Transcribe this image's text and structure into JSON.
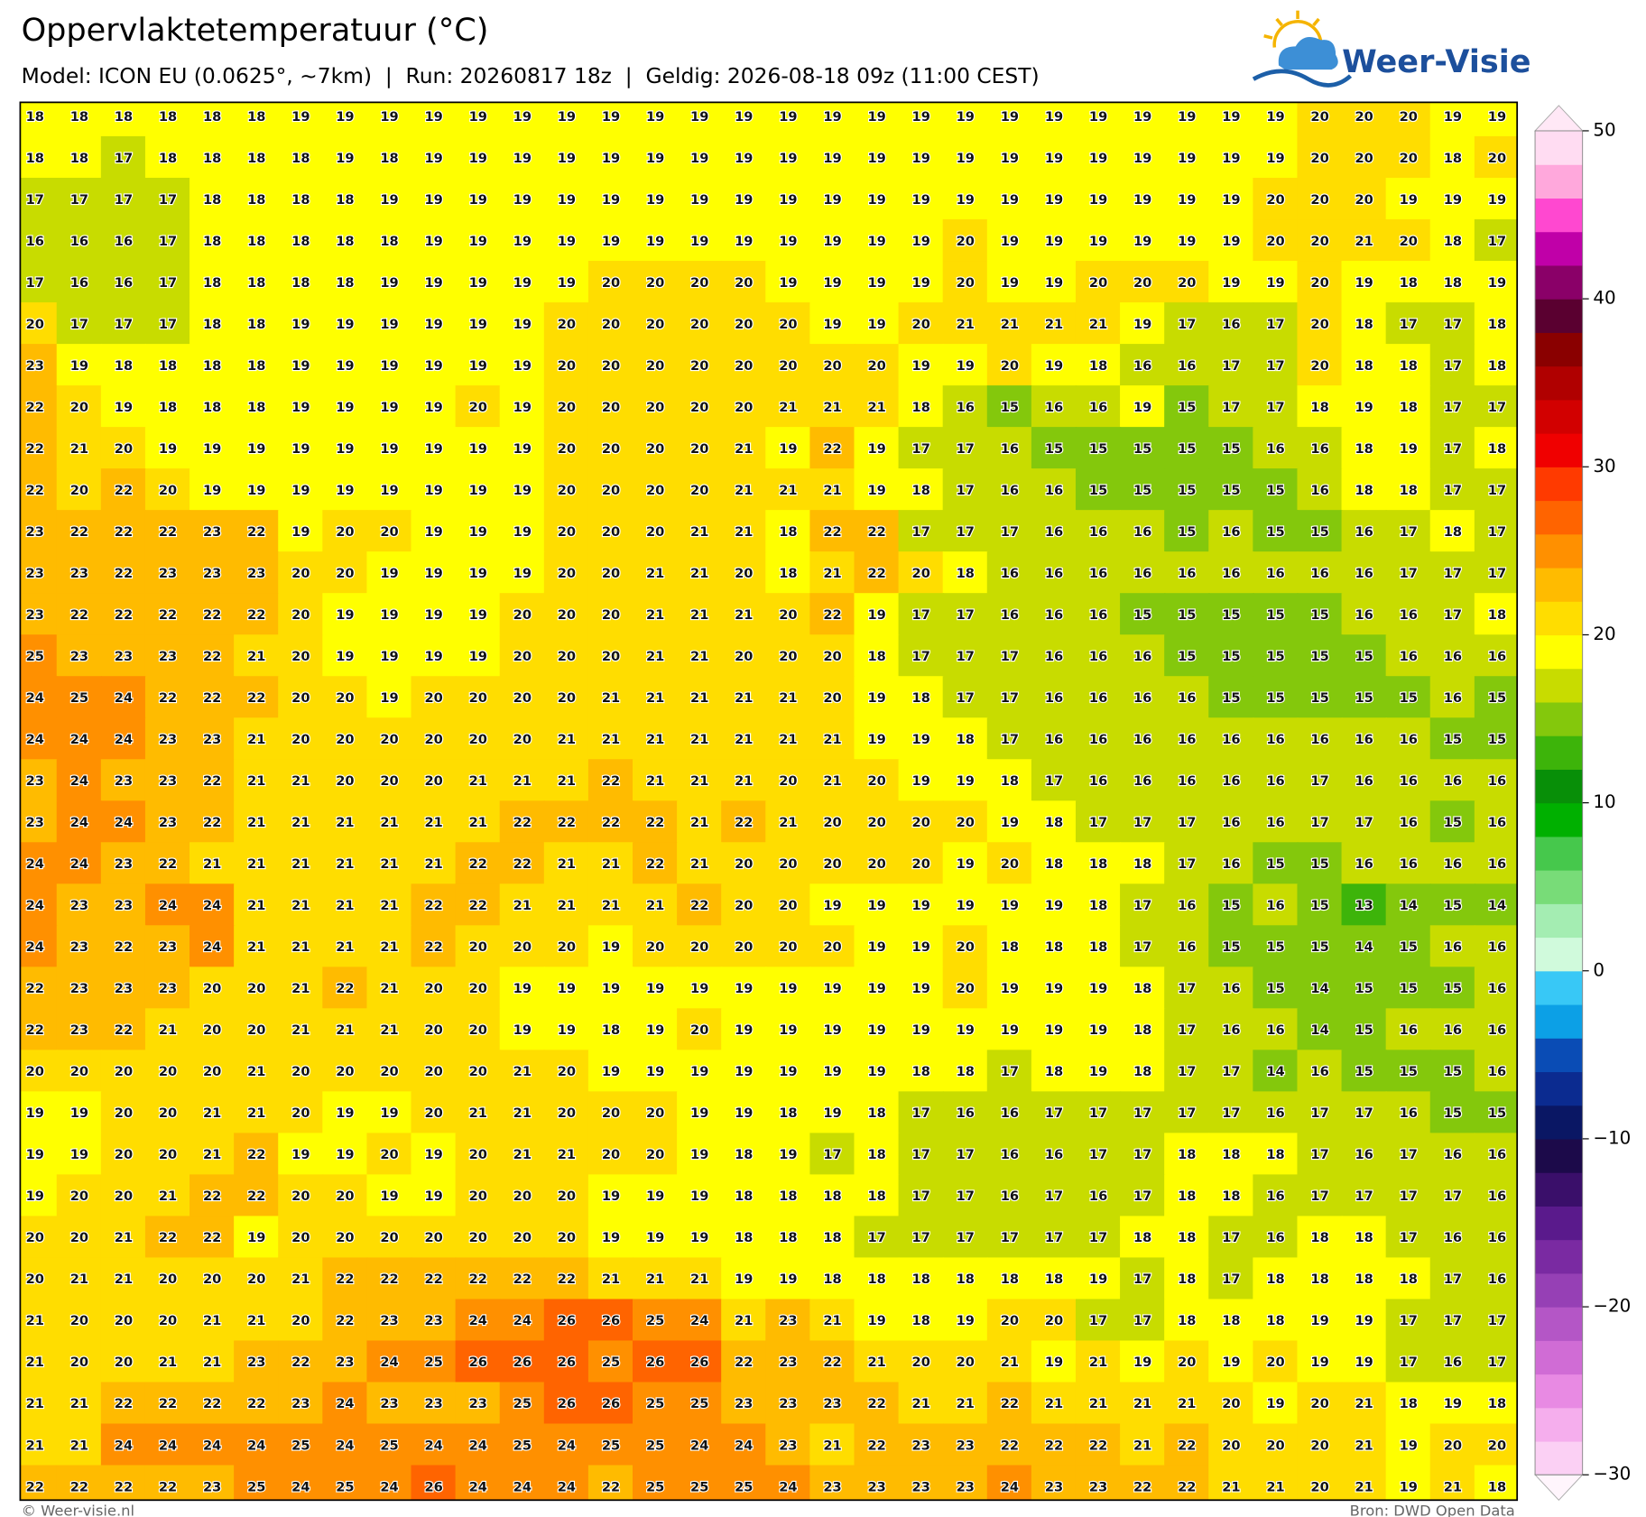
{
  "header": {
    "title": "Oppervlaktetemperatuur (°C)",
    "subtitle": "Model: ICON EU (0.0625°, ~7km)  |  Run: 20260817 18z  |  Geldig: 2026-08-18 09z (11:00 CEST)",
    "logo": "Weer-Visie"
  },
  "map": {
    "grid": [
      [
        18,
        18,
        18,
        18,
        18,
        18,
        19,
        19,
        19,
        19,
        19,
        19,
        19,
        19,
        19,
        19,
        19,
        19,
        19,
        19,
        19,
        19,
        19,
        19,
        19,
        19,
        19,
        19,
        19,
        20,
        20,
        20,
        19,
        19
      ],
      [
        18,
        18,
        17,
        18,
        18,
        18,
        18,
        19,
        18,
        19,
        19,
        19,
        19,
        19,
        19,
        19,
        19,
        19,
        19,
        19,
        19,
        19,
        19,
        19,
        19,
        19,
        19,
        19,
        19,
        20,
        20,
        20,
        18,
        20
      ],
      [
        17,
        17,
        17,
        17,
        18,
        18,
        18,
        18,
        19,
        19,
        19,
        19,
        19,
        19,
        19,
        19,
        19,
        19,
        19,
        19,
        19,
        19,
        19,
        19,
        19,
        19,
        19,
        19,
        20,
        20,
        20,
        19,
        19,
        19
      ],
      [
        16,
        16,
        16,
        17,
        18,
        18,
        18,
        18,
        18,
        19,
        19,
        19,
        19,
        19,
        19,
        19,
        19,
        19,
        19,
        19,
        19,
        20,
        19,
        19,
        19,
        19,
        19,
        19,
        20,
        20,
        21,
        20,
        18,
        17
      ],
      [
        17,
        16,
        16,
        17,
        18,
        18,
        18,
        18,
        19,
        19,
        19,
        19,
        19,
        20,
        20,
        20,
        20,
        19,
        19,
        19,
        19,
        20,
        19,
        19,
        20,
        20,
        20,
        19,
        19,
        20,
        19,
        18,
        18,
        19
      ],
      [
        20,
        17,
        17,
        17,
        18,
        18,
        19,
        19,
        19,
        19,
        19,
        19,
        20,
        20,
        20,
        20,
        20,
        20,
        19,
        19,
        20,
        21,
        21,
        21,
        21,
        19,
        17,
        16,
        17,
        20,
        18,
        17,
        17,
        18
      ],
      [
        23,
        19,
        18,
        18,
        18,
        18,
        19,
        19,
        19,
        19,
        19,
        19,
        20,
        20,
        20,
        20,
        20,
        20,
        20,
        20,
        19,
        19,
        20,
        19,
        18,
        16,
        16,
        17,
        17,
        20,
        18,
        18,
        17,
        18
      ],
      [
        22,
        20,
        19,
        18,
        18,
        18,
        19,
        19,
        19,
        19,
        20,
        19,
        20,
        20,
        20,
        20,
        20,
        21,
        21,
        21,
        18,
        16,
        15,
        16,
        16,
        19,
        15,
        17,
        17,
        18,
        19,
        18,
        17,
        17
      ],
      [
        22,
        21,
        20,
        19,
        19,
        19,
        19,
        19,
        19,
        19,
        19,
        19,
        20,
        20,
        20,
        20,
        21,
        19,
        22,
        19,
        17,
        17,
        16,
        15,
        15,
        15,
        15,
        15,
        16,
        16,
        18,
        19,
        17,
        18
      ],
      [
        22,
        20,
        22,
        20,
        19,
        19,
        19,
        19,
        19,
        19,
        19,
        19,
        20,
        20,
        20,
        20,
        21,
        21,
        21,
        19,
        18,
        17,
        16,
        16,
        15,
        15,
        15,
        15,
        15,
        16,
        18,
        18,
        17,
        17
      ],
      [
        23,
        22,
        22,
        22,
        23,
        22,
        19,
        20,
        20,
        19,
        19,
        19,
        20,
        20,
        20,
        21,
        21,
        18,
        22,
        22,
        17,
        17,
        17,
        16,
        16,
        16,
        15,
        16,
        15,
        15,
        16,
        17,
        18,
        17
      ],
      [
        23,
        23,
        22,
        23,
        23,
        23,
        20,
        20,
        19,
        19,
        19,
        19,
        20,
        20,
        21,
        21,
        20,
        18,
        21,
        22,
        20,
        18,
        16,
        16,
        16,
        16,
        16,
        16,
        16,
        16,
        16,
        17,
        17,
        17
      ],
      [
        23,
        22,
        22,
        22,
        22,
        22,
        20,
        19,
        19,
        19,
        19,
        20,
        20,
        20,
        21,
        21,
        21,
        20,
        22,
        19,
        17,
        17,
        16,
        16,
        16,
        15,
        15,
        15,
        15,
        15,
        16,
        16,
        17,
        18
      ],
      [
        25,
        23,
        23,
        23,
        22,
        21,
        20,
        19,
        19,
        19,
        19,
        20,
        20,
        20,
        21,
        21,
        20,
        20,
        20,
        18,
        17,
        17,
        17,
        16,
        16,
        16,
        15,
        15,
        15,
        15,
        15,
        16,
        16,
        16
      ],
      [
        24,
        25,
        24,
        22,
        22,
        22,
        20,
        20,
        19,
        20,
        20,
        20,
        20,
        21,
        21,
        21,
        21,
        21,
        20,
        19,
        18,
        17,
        17,
        16,
        16,
        16,
        16,
        15,
        15,
        15,
        15,
        15,
        16,
        15
      ],
      [
        24,
        24,
        24,
        23,
        23,
        21,
        20,
        20,
        20,
        20,
        20,
        20,
        21,
        21,
        21,
        21,
        21,
        21,
        21,
        19,
        19,
        18,
        17,
        16,
        16,
        16,
        16,
        16,
        16,
        16,
        16,
        16,
        15,
        15
      ],
      [
        23,
        24,
        23,
        23,
        22,
        21,
        21,
        20,
        20,
        20,
        21,
        21,
        21,
        22,
        21,
        21,
        21,
        20,
        21,
        20,
        19,
        19,
        18,
        17,
        16,
        16,
        16,
        16,
        16,
        17,
        16,
        16,
        16,
        16
      ],
      [
        23,
        24,
        24,
        23,
        22,
        21,
        21,
        21,
        21,
        21,
        21,
        22,
        22,
        22,
        22,
        21,
        22,
        21,
        20,
        20,
        20,
        20,
        19,
        18,
        17,
        17,
        17,
        16,
        16,
        17,
        17,
        16,
        15,
        16
      ],
      [
        24,
        24,
        23,
        22,
        21,
        21,
        21,
        21,
        21,
        21,
        22,
        22,
        21,
        21,
        22,
        21,
        20,
        20,
        20,
        20,
        20,
        19,
        20,
        18,
        18,
        18,
        17,
        16,
        15,
        15,
        16,
        16,
        16,
        16
      ],
      [
        24,
        23,
        23,
        24,
        24,
        21,
        21,
        21,
        21,
        22,
        22,
        21,
        21,
        21,
        21,
        22,
        20,
        20,
        19,
        19,
        19,
        19,
        19,
        19,
        18,
        17,
        16,
        15,
        16,
        15,
        13,
        14,
        15,
        14
      ],
      [
        24,
        23,
        22,
        23,
        24,
        21,
        21,
        21,
        21,
        22,
        20,
        20,
        20,
        19,
        20,
        20,
        20,
        20,
        20,
        19,
        19,
        20,
        18,
        18,
        18,
        17,
        16,
        15,
        15,
        15,
        14,
        15,
        16,
        16
      ],
      [
        22,
        23,
        23,
        23,
        20,
        20,
        21,
        22,
        21,
        20,
        20,
        19,
        19,
        19,
        19,
        19,
        19,
        19,
        19,
        19,
        19,
        20,
        19,
        19,
        19,
        18,
        17,
        16,
        15,
        14,
        15,
        15,
        15,
        16
      ],
      [
        22,
        23,
        22,
        21,
        20,
        20,
        21,
        21,
        21,
        20,
        20,
        19,
        19,
        18,
        19,
        20,
        19,
        19,
        19,
        19,
        19,
        19,
        19,
        19,
        19,
        18,
        17,
        16,
        16,
        14,
        15,
        16,
        16,
        16
      ],
      [
        20,
        20,
        20,
        20,
        20,
        21,
        20,
        20,
        20,
        20,
        20,
        21,
        20,
        19,
        19,
        19,
        19,
        19,
        19,
        19,
        18,
        18,
        17,
        18,
        19,
        18,
        17,
        17,
        14,
        16,
        15,
        15,
        15,
        16
      ],
      [
        19,
        19,
        20,
        20,
        21,
        21,
        20,
        19,
        19,
        20,
        21,
        21,
        20,
        20,
        20,
        19,
        19,
        18,
        19,
        18,
        17,
        16,
        16,
        17,
        17,
        17,
        17,
        17,
        16,
        17,
        17,
        16,
        15,
        15
      ],
      [
        19,
        19,
        20,
        20,
        21,
        22,
        19,
        19,
        20,
        19,
        20,
        21,
        21,
        20,
        20,
        19,
        18,
        19,
        17,
        18,
        17,
        17,
        16,
        16,
        17,
        17,
        18,
        18,
        18,
        17,
        16,
        17,
        16,
        16
      ],
      [
        19,
        20,
        20,
        21,
        22,
        22,
        20,
        20,
        19,
        19,
        20,
        20,
        20,
        19,
        19,
        19,
        18,
        18,
        18,
        18,
        17,
        17,
        16,
        17,
        16,
        17,
        18,
        18,
        16,
        17,
        17,
        17,
        17,
        16
      ],
      [
        20,
        20,
        21,
        22,
        22,
        19,
        20,
        20,
        20,
        20,
        20,
        20,
        20,
        19,
        19,
        19,
        18,
        18,
        18,
        17,
        17,
        17,
        17,
        17,
        17,
        18,
        18,
        17,
        16,
        18,
        18,
        17,
        16,
        16
      ],
      [
        20,
        21,
        21,
        20,
        20,
        20,
        21,
        22,
        22,
        22,
        22,
        22,
        22,
        21,
        21,
        21,
        19,
        19,
        18,
        18,
        18,
        18,
        18,
        18,
        19,
        17,
        18,
        17,
        18,
        18,
        18,
        18,
        17,
        16
      ],
      [
        21,
        20,
        20,
        20,
        21,
        21,
        20,
        22,
        23,
        23,
        24,
        24,
        26,
        26,
        25,
        24,
        21,
        23,
        21,
        19,
        18,
        19,
        20,
        20,
        17,
        17,
        18,
        18,
        18,
        19,
        19,
        17,
        17,
        17
      ],
      [
        21,
        20,
        20,
        21,
        21,
        23,
        22,
        23,
        24,
        25,
        26,
        26,
        26,
        25,
        26,
        26,
        22,
        23,
        22,
        21,
        20,
        20,
        21,
        19,
        21,
        19,
        20,
        19,
        20,
        19,
        19,
        17,
        16,
        17
      ],
      [
        21,
        21,
        22,
        22,
        22,
        22,
        23,
        24,
        23,
        23,
        23,
        25,
        26,
        26,
        25,
        25,
        23,
        23,
        23,
        22,
        21,
        21,
        22,
        21,
        21,
        21,
        21,
        20,
        19,
        20,
        21,
        18,
        19,
        18
      ],
      [
        21,
        21,
        24,
        24,
        24,
        24,
        25,
        24,
        25,
        24,
        24,
        25,
        24,
        25,
        25,
        24,
        24,
        23,
        21,
        22,
        23,
        23,
        22,
        22,
        22,
        21,
        22,
        20,
        20,
        20,
        21,
        19,
        20,
        20
      ],
      [
        22,
        22,
        22,
        22,
        23,
        25,
        24,
        25,
        24,
        26,
        24,
        24,
        24,
        22,
        25,
        25,
        25,
        24,
        23,
        23,
        23,
        23,
        24,
        23,
        23,
        22,
        22,
        21,
        21,
        20,
        21,
        19,
        21,
        18
      ]
    ]
  },
  "colorbar": {
    "lim": [
      -30,
      50
    ],
    "ticks": [
      50,
      40,
      30,
      20,
      10,
      0,
      {
        "value": -10,
        "label": "−10"
      },
      {
        "value": -20,
        "label": "−20"
      },
      {
        "value": -30,
        "label": "−30"
      }
    ],
    "colors": [
      "#fbd0f4",
      "#f5aeed",
      "#e88ae3",
      "#d06cd5",
      "#b456c6",
      "#9640b5",
      "#7a2aa2",
      "#5a1a8c",
      "#3a0f6a",
      "#1c0a4a",
      "#0a1764",
      "#0b2b90",
      "#0a4cb5",
      "#0ca0e6",
      "#38c8f6",
      "#d0fadc",
      "#a4edb2",
      "#78dc78",
      "#46c84c",
      "#00b000",
      "#088f08",
      "#3db40a",
      "#84c80c",
      "#c8dc00",
      "#ffff00",
      "#ffdd00",
      "#ffbb00",
      "#ff9000",
      "#ff6400",
      "#ff3a00",
      "#f00000",
      "#d20000",
      "#b00000",
      "#8a0000",
      "#5a0030",
      "#8a0068",
      "#c000a8",
      "#ff48d0",
      "#ffa8dc",
      "#ffdcf2"
    ],
    "over_color": "#ffe8f6",
    "under_color": "#fff5fc"
  },
  "footer": {
    "credit": "© Weer-visie.nl",
    "source": "Bron: DWD Open Data"
  }
}
